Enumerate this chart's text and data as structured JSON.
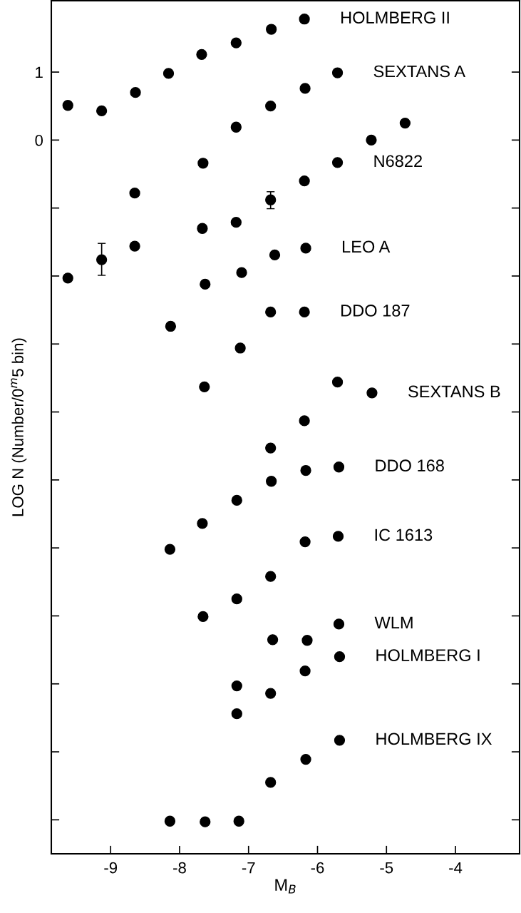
{
  "chart_data": {
    "type": "scatter",
    "xlabel": "M$_{B}$",
    "ylabel": "LOG N (Number/0$^{m}$5 bin)",
    "xlim": [
      -9.86,
      -3.07
    ],
    "ylim": [
      -10.5,
      2.05
    ],
    "xticks": [
      -9,
      -8,
      -7,
      -6,
      -5,
      -4
    ],
    "yticks": [
      1,
      0,
      {
        "value": -1,
        "label": null
      },
      {
        "value": -2,
        "label": null
      },
      {
        "value": -3,
        "label": null
      },
      {
        "value": -4,
        "label": null
      },
      {
        "value": -5,
        "label": null
      },
      {
        "value": -6,
        "label": null
      },
      {
        "value": -7,
        "label": null
      },
      {
        "value": -8,
        "label": null
      },
      {
        "value": -9,
        "label": null
      },
      {
        "value": -10,
        "label": null
      }
    ],
    "grid": false,
    "marker": "circle",
    "series": [
      {
        "color": "#000000",
        "x": [
          -9.62,
          -9.13,
          -8.64,
          -8.16,
          -7.68,
          -7.18,
          -6.67,
          -6.19,
          -5.71,
          -6.18,
          -6.68,
          -7.18,
          -5.22,
          -4.73,
          -7.66,
          -5.71,
          -6.19,
          -6.68,
          -8.65,
          -7.67,
          -7.18,
          -8.65,
          -9.13,
          -9.62,
          -6.62,
          -6.17,
          -7.1,
          -7.63,
          -6.68,
          -6.19,
          -8.13,
          -7.12,
          -7.64,
          -5.71,
          -5.21,
          -6.19,
          -6.68,
          -6.17,
          -5.69,
          -6.67,
          -7.17,
          -7.67,
          -8.14,
          -6.18,
          -5.7,
          -6.68,
          -7.17,
          -7.66,
          -5.69,
          -6.65,
          -6.15,
          -5.68,
          -6.18,
          -7.17,
          -6.68,
          -7.17,
          -5.68,
          -6.17,
          -6.68,
          -8.14,
          -7.63,
          -7.14
        ],
        "values": [
          0.51,
          0.43,
          0.7,
          0.98,
          1.26,
          1.43,
          1.63,
          1.78,
          0.99,
          0.76,
          0.5,
          0.19,
          0.0,
          0.25,
          -0.34,
          -0.33,
          -0.6,
          -0.88,
          -0.78,
          -1.3,
          -1.21,
          -1.56,
          -1.76,
          -2.03,
          -1.69,
          -1.59,
          -1.95,
          -2.12,
          -2.53,
          -2.53,
          -2.74,
          -3.06,
          -3.63,
          -3.56,
          -3.72,
          -4.13,
          -4.53,
          -4.86,
          -4.81,
          -5.02,
          -5.3,
          -5.64,
          -6.02,
          -5.91,
          -5.83,
          -6.42,
          -6.75,
          -7.01,
          -7.12,
          -7.35,
          -7.36,
          -7.6,
          -7.81,
          -8.03,
          -8.14,
          -8.44,
          -8.83,
          -9.11,
          -9.45,
          -10.02,
          -10.03,
          -10.02
        ],
        "errors": [
          null,
          null,
          null,
          null,
          null,
          null,
          null,
          null,
          null,
          null,
          null,
          null,
          null,
          null,
          null,
          null,
          null,
          [
            -1.01,
            -0.76
          ],
          null,
          null,
          null,
          null,
          [
            -1.99,
            -1.52
          ],
          null,
          null,
          null,
          null,
          null,
          null,
          null,
          null,
          null,
          null,
          null,
          null,
          null,
          null,
          null,
          null,
          null,
          null,
          null,
          null,
          null,
          null,
          null,
          null,
          null,
          null,
          null,
          null,
          null,
          null,
          null,
          null,
          null,
          null,
          null,
          null,
          null,
          null,
          null
        ]
      }
    ],
    "annotations": [
      {
        "text": "HOLMBERG II",
        "x": -6.19,
        "y": 1.78
      },
      {
        "text": "SEXTANS A",
        "x": -5.71,
        "y": 0.99
      },
      {
        "text": "N6822",
        "x": -5.71,
        "y": -0.33
      },
      {
        "text": "LEO A",
        "x": -6.17,
        "y": -1.59
      },
      {
        "text": "DDO 187",
        "x": -6.19,
        "y": -2.53
      },
      {
        "text": "SEXTANS B",
        "x": -5.21,
        "y": -3.72
      },
      {
        "text": "DDO 168",
        "x": -5.69,
        "y": -4.81
      },
      {
        "text": "IC 1613",
        "x": -5.7,
        "y": -5.83
      },
      {
        "text": "WLM",
        "x": -5.69,
        "y": -7.12
      },
      {
        "text": "HOLMBERG I",
        "x": -5.68,
        "y": -7.6
      },
      {
        "text": "HOLMBERG IX",
        "x": -5.68,
        "y": -8.83
      }
    ]
  }
}
